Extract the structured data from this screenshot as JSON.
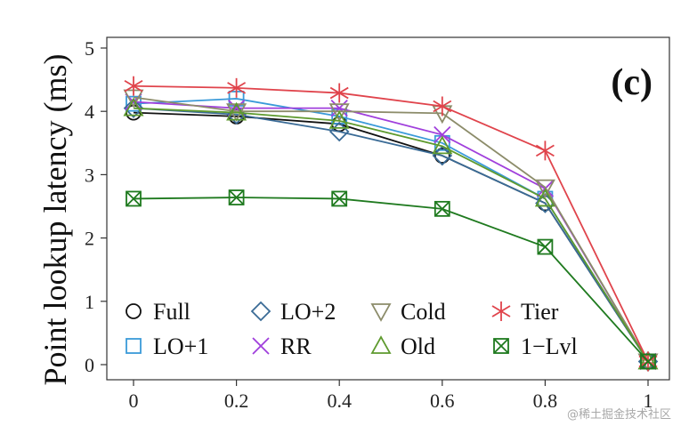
{
  "chart_data": {
    "type": "line",
    "panel_label": "(c)",
    "ylabel": "Point lookup latency (ms)",
    "xlabel": "",
    "x": [
      0,
      0.2,
      0.4,
      0.6,
      0.8,
      1
    ],
    "x_tick_labels": [
      "0",
      "0.2",
      "0.4",
      "0.6",
      "0.8",
      "1"
    ],
    "xlim": [
      0,
      1
    ],
    "ylim": [
      0,
      5
    ],
    "y_ticks": [
      0,
      1,
      2,
      3,
      4,
      5
    ],
    "grid": false,
    "legend_position": "bottom-left",
    "series": [
      {
        "name": "Full",
        "marker": "circle",
        "color": "#111111",
        "values": [
          3.98,
          3.92,
          3.8,
          3.3,
          2.55,
          0.05
        ]
      },
      {
        "name": "LO+1",
        "marker": "square",
        "color": "#3a9ad9",
        "values": [
          4.12,
          4.2,
          3.92,
          3.5,
          2.62,
          0.05
        ]
      },
      {
        "name": "LO+2",
        "marker": "diamond",
        "color": "#3a6b96",
        "values": [
          4.05,
          3.95,
          3.68,
          3.3,
          2.55,
          0.05
        ]
      },
      {
        "name": "RR",
        "marker": "cross",
        "color": "#a03fdc",
        "values": [
          4.15,
          4.05,
          4.05,
          3.63,
          2.78,
          0.05
        ]
      },
      {
        "name": "Cold",
        "marker": "triangle-down",
        "color": "#8c8c6a",
        "values": [
          4.22,
          4.0,
          4.0,
          3.97,
          2.8,
          0.05
        ]
      },
      {
        "name": "Old",
        "marker": "triangle-up",
        "color": "#5e9a2e",
        "values": [
          4.05,
          3.98,
          3.85,
          3.45,
          2.62,
          0.05
        ]
      },
      {
        "name": "Tier",
        "marker": "asterisk",
        "color": "#e0444c",
        "values": [
          4.4,
          4.37,
          4.29,
          4.08,
          3.38,
          0.05
        ]
      },
      {
        "name": "1−Lvl",
        "marker": "boxed-x",
        "color": "#1f7a1f",
        "values": [
          2.62,
          2.64,
          2.62,
          2.46,
          1.86,
          0.05
        ]
      }
    ]
  },
  "watermark": "@稀土掘金技术社区"
}
